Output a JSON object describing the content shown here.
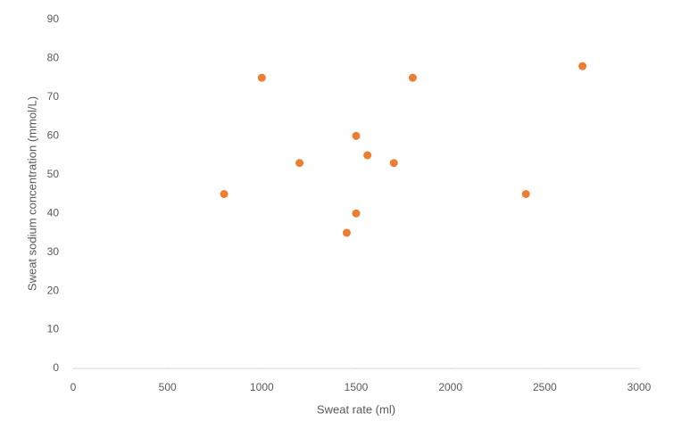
{
  "chart_data": {
    "type": "scatter",
    "x_label": "Sweat rate (ml)",
    "y_label": "Sweat sodium concentration (mmol/L)",
    "x": [
      800,
      1000,
      1200,
      1500,
      1500,
      1450,
      1560,
      1700,
      1800,
      2400,
      2700
    ],
    "values": [
      45,
      75,
      53,
      60,
      40,
      35,
      55,
      53,
      75,
      45,
      78
    ],
    "color": "#ed7d31",
    "xlim": [
      0,
      3000
    ],
    "xticks": [
      0,
      500,
      1000,
      1500,
      2000,
      2500,
      3000
    ],
    "ylim": [
      0,
      90
    ],
    "yticks": [
      0,
      10,
      20,
      30,
      40,
      50,
      60,
      70,
      80,
      90
    ],
    "grid": false
  }
}
